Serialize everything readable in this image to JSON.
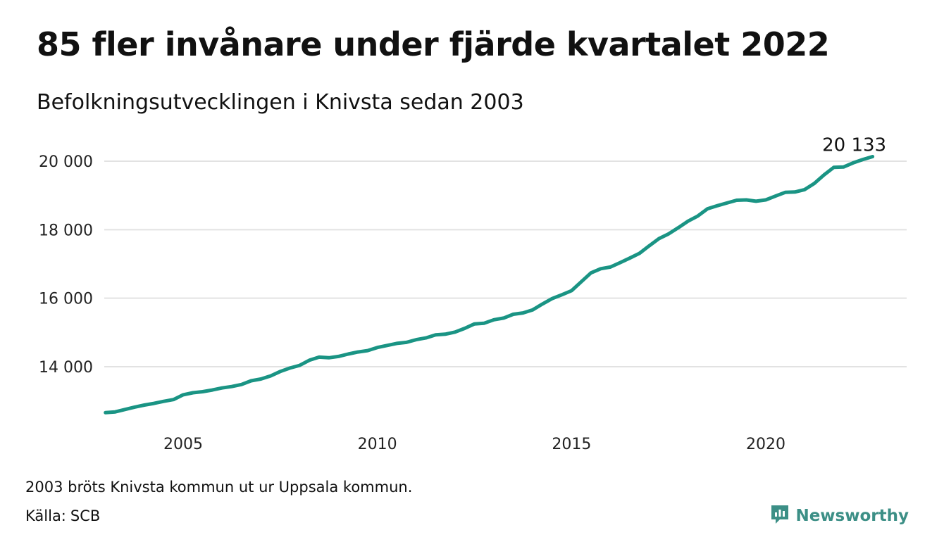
{
  "header": {
    "title": "85 fler invånare under fjärde kvartalet 2022",
    "subtitle": "Befolkningsutvecklingen i Knivsta sedan 2003"
  },
  "footer": {
    "note": "2003 bröts Knivsta kommun ut ur Uppsala kommun.",
    "source_label": "Källa:",
    "source_value": "SCB",
    "brand": "Newsworthy",
    "brand_icon": "newsworthy-logo-icon"
  },
  "colors": {
    "line": "#1a9484",
    "grid": "#e2e2e2",
    "brand": "#3c8f86"
  },
  "chart_data": {
    "type": "line",
    "title": "85 fler invånare under fjärde kvartalet 2022",
    "subtitle": "Befolkningsutvecklingen i Knivsta sedan 2003",
    "xlabel": "",
    "ylabel": "",
    "xlim": [
      2003.0,
      2023.0
    ],
    "ylim": [
      12400,
      20400
    ],
    "x_ticks": [
      2005,
      2010,
      2015,
      2020
    ],
    "x_tick_labels": [
      "2005",
      "2010",
      "2015",
      "2020"
    ],
    "y_ticks": [
      14000,
      16000,
      18000,
      20000
    ],
    "y_tick_labels": [
      "14 000",
      "16 000",
      "18 000",
      "20 000"
    ],
    "grid": "horizontal",
    "legend": "none",
    "end_label": "20 133",
    "series": [
      {
        "x": [
          "2003Q1",
          "2003Q2",
          "2003Q3",
          "2003Q4",
          "2004Q1",
          "2004Q2",
          "2004Q3",
          "2004Q4",
          "2005Q1",
          "2005Q2",
          "2005Q3",
          "2005Q4",
          "2006Q1",
          "2006Q2",
          "2006Q3",
          "2006Q4",
          "2007Q1",
          "2007Q2",
          "2007Q3",
          "2007Q4",
          "2008Q1",
          "2008Q2",
          "2008Q3",
          "2008Q4",
          "2009Q1",
          "2009Q2",
          "2009Q3",
          "2009Q4",
          "2010Q1",
          "2010Q2",
          "2010Q3",
          "2010Q4",
          "2011Q1",
          "2011Q2",
          "2011Q3",
          "2011Q4",
          "2012Q1",
          "2012Q2",
          "2012Q3",
          "2012Q4",
          "2013Q1",
          "2013Q2",
          "2013Q3",
          "2013Q4",
          "2014Q1",
          "2014Q2",
          "2014Q3",
          "2014Q4",
          "2015Q1",
          "2015Q2",
          "2015Q3",
          "2015Q4",
          "2016Q1",
          "2016Q2",
          "2016Q3",
          "2016Q4",
          "2017Q1",
          "2017Q2",
          "2017Q3",
          "2017Q4",
          "2018Q1",
          "2018Q2",
          "2018Q3",
          "2018Q4",
          "2019Q1",
          "2019Q2",
          "2019Q3",
          "2019Q4",
          "2020Q1",
          "2020Q2",
          "2020Q3",
          "2020Q4",
          "2021Q1",
          "2021Q2",
          "2021Q3",
          "2021Q4",
          "2022Q1",
          "2022Q2",
          "2022Q3",
          "2022Q4"
        ],
        "values": [
          12660,
          12680,
          12750,
          12820,
          12880,
          12930,
          12990,
          13040,
          13180,
          13240,
          13270,
          13320,
          13380,
          13420,
          13480,
          13590,
          13640,
          13730,
          13860,
          13960,
          14040,
          14190,
          14280,
          14260,
          14300,
          14370,
          14430,
          14470,
          14560,
          14620,
          14680,
          14710,
          14790,
          14840,
          14930,
          14950,
          15010,
          15120,
          15250,
          15270,
          15370,
          15420,
          15530,
          15570,
          15660,
          15830,
          15990,
          16100,
          16220,
          16480,
          16740,
          16860,
          16910,
          17040,
          17170,
          17310,
          17530,
          17740,
          17880,
          18060,
          18250,
          18400,
          18610,
          18700,
          18780,
          18860,
          18870,
          18830,
          18870,
          18980,
          19090,
          19100,
          19170,
          19350,
          19600,
          19820,
          19830,
          19950,
          20050,
          20133
        ]
      }
    ]
  }
}
